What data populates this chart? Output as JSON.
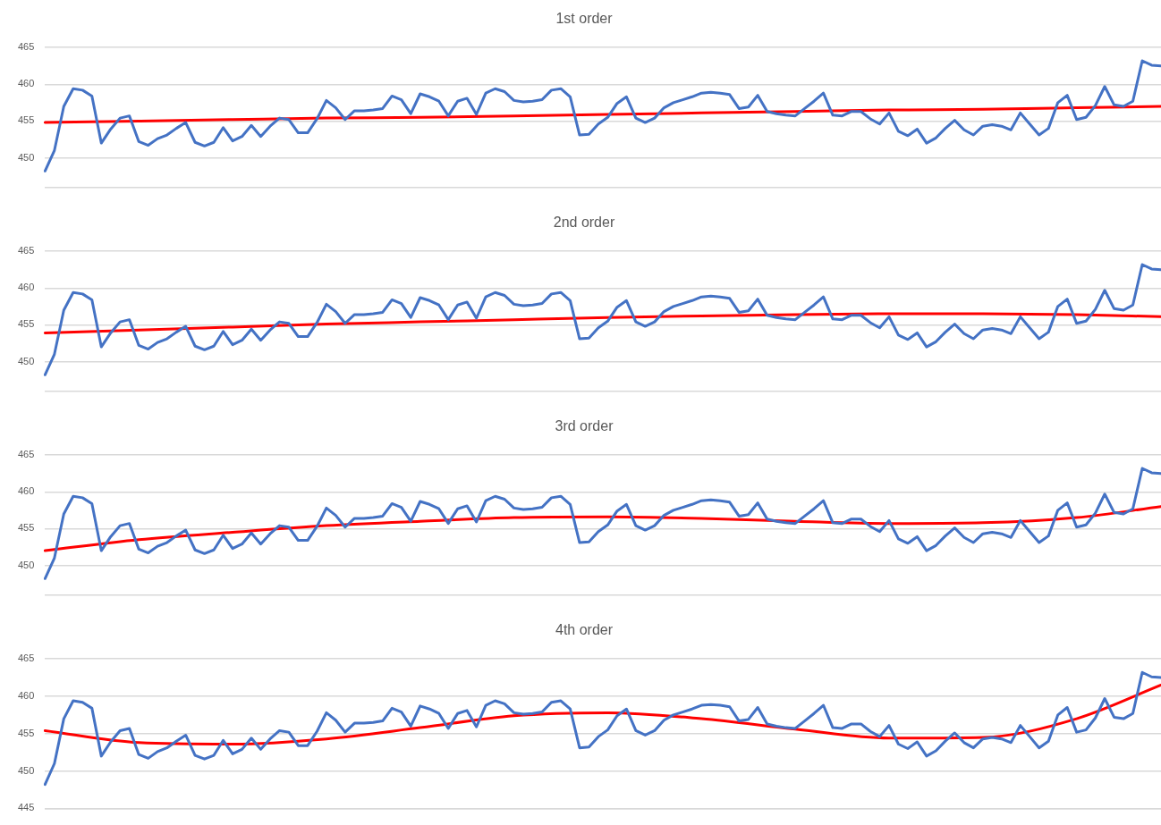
{
  "chart_data": [
    {
      "type": "line",
      "title": "1st order",
      "marker": "none",
      "grid": "y",
      "tick_labels": "y",
      "ylim": [
        446,
        465
      ],
      "yticks": [
        450,
        455,
        460,
        465
      ],
      "categories": [
        null,
        null,
        null,
        null,
        null,
        null,
        null,
        null,
        null,
        null,
        null,
        null,
        null,
        null,
        null,
        null,
        null,
        null,
        null,
        null,
        null,
        null,
        null,
        null,
        null,
        null,
        null,
        null,
        null,
        null,
        null,
        null,
        null,
        null,
        null,
        null,
        null,
        null,
        null,
        null,
        null,
        null,
        null,
        null,
        null,
        null,
        null,
        null,
        null,
        null,
        null,
        null,
        null,
        null,
        null,
        null,
        null,
        null,
        null,
        null,
        null,
        null,
        null,
        null,
        null,
        null,
        null,
        null,
        null,
        null,
        null,
        null,
        null,
        null,
        null,
        null,
        null,
        null,
        null,
        null,
        null,
        null,
        null,
        null,
        null,
        null,
        null,
        null,
        null,
        null,
        null,
        null,
        null,
        null,
        null,
        null,
        null,
        null,
        null,
        null,
        null,
        null,
        null,
        null,
        null,
        null,
        null,
        null,
        null,
        null,
        null,
        null,
        null,
        null,
        null,
        null,
        null,
        null,
        null,
        null
      ],
      "series": [
        {
          "color": "#4472c4",
          "values": [
            448.2,
            451,
            457,
            459.4,
            459.2,
            458.4,
            452,
            453.9,
            455.4,
            455.7,
            452.2,
            451.7,
            452.6,
            453.1,
            454,
            454.8,
            452.1,
            451.6,
            452.1,
            454.1,
            452.3,
            452.9,
            454.4,
            452.9,
            454.3,
            455.4,
            455.2,
            453.4,
            453.4,
            455.3,
            457.8,
            456.8,
            455.2,
            456.4,
            456.4,
            456.5,
            456.7,
            458.4,
            457.9,
            456.0,
            458.7,
            458.3,
            457.7,
            455.7,
            457.7,
            458.1,
            455.9,
            458.8,
            459.4,
            459.0,
            457.8,
            457.6,
            457.7,
            457.9,
            459.2,
            459.4,
            458.3,
            453.1,
            453.2,
            454.6,
            455.5,
            457.4,
            458.3,
            455.4,
            454.8,
            455.4,
            456.8,
            457.5,
            457.9,
            458.3,
            458.8,
            458.9,
            458.8,
            458.6,
            456.7,
            456.9,
            458.5,
            456.3,
            456.0,
            455.8,
            455.7,
            456.7,
            457.7,
            458.8,
            455.8,
            455.7,
            456.3,
            456.3,
            455.3,
            454.6,
            456.1,
            453.6,
            453.0,
            453.9,
            452.0,
            452.7,
            454.0,
            455.1,
            453.8,
            453.1,
            454.3,
            454.5,
            454.3,
            453.8,
            456.1,
            454.6,
            453.1,
            454.0,
            457.5,
            458.5,
            455.2,
            455.5,
            457.1,
            459.7,
            457.2,
            457.0,
            457.7,
            463.2,
            462.6,
            462.5
          ]
        },
        {
          "color": "#ff0000",
          "values": [
            454.8,
            null,
            null,
            null,
            null,
            null,
            null,
            null,
            null,
            null,
            455.0,
            null,
            null,
            null,
            null,
            null,
            null,
            null,
            null,
            null,
            455.2,
            null,
            null,
            null,
            null,
            null,
            null,
            null,
            null,
            null,
            455.4,
            null,
            null,
            null,
            null,
            null,
            null,
            null,
            null,
            null,
            455.5,
            null,
            null,
            null,
            null,
            null,
            null,
            null,
            null,
            null,
            455.7,
            null,
            null,
            null,
            null,
            null,
            null,
            null,
            null,
            null,
            455.9,
            null,
            null,
            null,
            null,
            null,
            null,
            null,
            null,
            null,
            456.1,
            null,
            null,
            null,
            null,
            null,
            null,
            null,
            null,
            null,
            456.3,
            null,
            null,
            null,
            null,
            null,
            null,
            null,
            null,
            null,
            456.5,
            null,
            null,
            null,
            null,
            null,
            null,
            null,
            null,
            null,
            456.6,
            null,
            null,
            null,
            null,
            null,
            null,
            null,
            null,
            null,
            456.8,
            null,
            null,
            null,
            null,
            null,
            null,
            null,
            null,
            457.0
          ]
        }
      ]
    },
    {
      "type": "line",
      "title": "2nd order",
      "marker": "none",
      "grid": "y",
      "tick_labels": "y",
      "ylim": [
        446,
        465
      ],
      "yticks": [
        450,
        455,
        460,
        465
      ],
      "categories": [
        null,
        null,
        null,
        null,
        null,
        null,
        null,
        null,
        null,
        null,
        null,
        null,
        null,
        null,
        null,
        null,
        null,
        null,
        null,
        null,
        null,
        null,
        null,
        null,
        null,
        null,
        null,
        null,
        null,
        null,
        null,
        null,
        null,
        null,
        null,
        null,
        null,
        null,
        null,
        null,
        null,
        null,
        null,
        null,
        null,
        null,
        null,
        null,
        null,
        null,
        null,
        null,
        null,
        null,
        null,
        null,
        null,
        null,
        null,
        null,
        null,
        null,
        null,
        null,
        null,
        null,
        null,
        null,
        null,
        null,
        null,
        null,
        null,
        null,
        null,
        null,
        null,
        null,
        null,
        null,
        null,
        null,
        null,
        null,
        null,
        null,
        null,
        null,
        null,
        null,
        null,
        null,
        null,
        null,
        null,
        null,
        null,
        null,
        null,
        null,
        null,
        null,
        null,
        null,
        null,
        null,
        null,
        null,
        null,
        null,
        null,
        null,
        null,
        null,
        null,
        null,
        null,
        null,
        null,
        null
      ],
      "series": [
        {
          "color": "#4472c4",
          "values": [
            448.2,
            451,
            457,
            459.4,
            459.2,
            458.4,
            452,
            453.9,
            455.4,
            455.7,
            452.2,
            451.7,
            452.6,
            453.1,
            454,
            454.8,
            452.1,
            451.6,
            452.1,
            454.1,
            452.3,
            452.9,
            454.4,
            452.9,
            454.3,
            455.4,
            455.2,
            453.4,
            453.4,
            455.3,
            457.8,
            456.8,
            455.2,
            456.4,
            456.4,
            456.5,
            456.7,
            458.4,
            457.9,
            456.0,
            458.7,
            458.3,
            457.7,
            455.7,
            457.7,
            458.1,
            455.9,
            458.8,
            459.4,
            459.0,
            457.8,
            457.6,
            457.7,
            457.9,
            459.2,
            459.4,
            458.3,
            453.1,
            453.2,
            454.6,
            455.5,
            457.4,
            458.3,
            455.4,
            454.8,
            455.4,
            456.8,
            457.5,
            457.9,
            458.3,
            458.8,
            458.9,
            458.8,
            458.6,
            456.7,
            456.9,
            458.5,
            456.3,
            456.0,
            455.8,
            455.7,
            456.7,
            457.7,
            458.8,
            455.8,
            455.7,
            456.3,
            456.3,
            455.3,
            454.6,
            456.1,
            453.6,
            453.0,
            453.9,
            452.0,
            452.7,
            454.0,
            455.1,
            453.8,
            453.1,
            454.3,
            454.5,
            454.3,
            453.8,
            456.1,
            454.6,
            453.1,
            454.0,
            457.5,
            458.5,
            455.2,
            455.5,
            457.1,
            459.7,
            457.2,
            457.0,
            457.7,
            463.2,
            462.6,
            462.5
          ]
        },
        {
          "color": "#ff0000",
          "values": [
            453.9,
            null,
            null,
            null,
            null,
            null,
            null,
            null,
            null,
            null,
            454.3,
            null,
            null,
            null,
            null,
            null,
            null,
            null,
            null,
            null,
            454.7,
            null,
            null,
            null,
            null,
            null,
            null,
            null,
            null,
            null,
            455.1,
            null,
            null,
            null,
            null,
            null,
            null,
            null,
            null,
            null,
            455.4,
            null,
            null,
            null,
            null,
            null,
            null,
            null,
            null,
            null,
            455.7,
            null,
            null,
            null,
            null,
            null,
            null,
            null,
            null,
            null,
            456.0,
            null,
            null,
            null,
            null,
            null,
            null,
            null,
            null,
            null,
            456.2,
            null,
            null,
            null,
            null,
            null,
            null,
            null,
            null,
            null,
            456.4,
            null,
            null,
            null,
            null,
            null,
            null,
            null,
            null,
            null,
            456.5,
            null,
            null,
            null,
            null,
            null,
            null,
            null,
            null,
            null,
            456.5,
            null,
            null,
            null,
            null,
            null,
            null,
            null,
            null,
            null,
            456.4,
            null,
            null,
            null,
            null,
            null,
            null,
            null,
            null,
            456.1
          ]
        }
      ]
    },
    {
      "type": "line",
      "title": "3rd order",
      "marker": "none",
      "grid": "y",
      "tick_labels": "y",
      "ylim": [
        446,
        465
      ],
      "yticks": [
        450,
        455,
        460,
        465
      ],
      "categories": [
        null,
        null,
        null,
        null,
        null,
        null,
        null,
        null,
        null,
        null,
        null,
        null,
        null,
        null,
        null,
        null,
        null,
        null,
        null,
        null,
        null,
        null,
        null,
        null,
        null,
        null,
        null,
        null,
        null,
        null,
        null,
        null,
        null,
        null,
        null,
        null,
        null,
        null,
        null,
        null,
        null,
        null,
        null,
        null,
        null,
        null,
        null,
        null,
        null,
        null,
        null,
        null,
        null,
        null,
        null,
        null,
        null,
        null,
        null,
        null,
        null,
        null,
        null,
        null,
        null,
        null,
        null,
        null,
        null,
        null,
        null,
        null,
        null,
        null,
        null,
        null,
        null,
        null,
        null,
        null,
        null,
        null,
        null,
        null,
        null,
        null,
        null,
        null,
        null,
        null,
        null,
        null,
        null,
        null,
        null,
        null,
        null,
        null,
        null,
        null,
        null,
        null,
        null,
        null,
        null,
        null,
        null,
        null,
        null,
        null,
        null,
        null,
        null,
        null,
        null,
        null,
        null,
        null,
        null,
        null
      ],
      "series": [
        {
          "color": "#4472c4",
          "values": [
            448.2,
            451,
            457,
            459.4,
            459.2,
            458.4,
            452,
            453.9,
            455.4,
            455.7,
            452.2,
            451.7,
            452.6,
            453.1,
            454,
            454.8,
            452.1,
            451.6,
            452.1,
            454.1,
            452.3,
            452.9,
            454.4,
            452.9,
            454.3,
            455.4,
            455.2,
            453.4,
            453.4,
            455.3,
            457.8,
            456.8,
            455.2,
            456.4,
            456.4,
            456.5,
            456.7,
            458.4,
            457.9,
            456.0,
            458.7,
            458.3,
            457.7,
            455.7,
            457.7,
            458.1,
            455.9,
            458.8,
            459.4,
            459.0,
            457.8,
            457.6,
            457.7,
            457.9,
            459.2,
            459.4,
            458.3,
            453.1,
            453.2,
            454.6,
            455.5,
            457.4,
            458.3,
            455.4,
            454.8,
            455.4,
            456.8,
            457.5,
            457.9,
            458.3,
            458.8,
            458.9,
            458.8,
            458.6,
            456.7,
            456.9,
            458.5,
            456.3,
            456.0,
            455.8,
            455.7,
            456.7,
            457.7,
            458.8,
            455.8,
            455.7,
            456.3,
            456.3,
            455.3,
            454.6,
            456.1,
            453.6,
            453.0,
            453.9,
            452.0,
            452.7,
            454.0,
            455.1,
            453.8,
            453.1,
            454.3,
            454.5,
            454.3,
            453.8,
            456.1,
            454.6,
            453.1,
            454.0,
            457.5,
            458.5,
            455.2,
            455.5,
            457.1,
            459.7,
            457.2,
            457.0,
            457.7,
            463.2,
            462.6,
            462.5
          ]
        },
        {
          "color": "#ff0000",
          "values": [
            452.0,
            null,
            null,
            null,
            null,
            null,
            null,
            null,
            null,
            null,
            453.5,
            null,
            null,
            null,
            null,
            null,
            null,
            null,
            null,
            null,
            454.5,
            null,
            null,
            null,
            null,
            null,
            null,
            null,
            null,
            null,
            455.4,
            null,
            null,
            null,
            null,
            null,
            null,
            null,
            null,
            null,
            456.0,
            null,
            null,
            null,
            null,
            null,
            null,
            null,
            null,
            null,
            456.5,
            null,
            null,
            null,
            null,
            null,
            null,
            null,
            null,
            null,
            456.6,
            null,
            null,
            null,
            null,
            null,
            null,
            null,
            null,
            null,
            456.4,
            null,
            null,
            null,
            null,
            null,
            null,
            null,
            null,
            null,
            456.0,
            null,
            null,
            null,
            null,
            null,
            null,
            null,
            null,
            null,
            455.7,
            null,
            null,
            null,
            null,
            null,
            null,
            null,
            null,
            null,
            455.8,
            null,
            null,
            null,
            null,
            null,
            null,
            null,
            null,
            null,
            456.5,
            null,
            null,
            null,
            null,
            null,
            null,
            null,
            null,
            458.0
          ]
        }
      ]
    },
    {
      "type": "line",
      "title": "4th order",
      "marker": "none",
      "grid": "y",
      "tick_labels": "y",
      "ylim": [
        445,
        465
      ],
      "yticks": [
        445,
        450,
        455,
        460,
        465
      ],
      "categories": [
        null,
        null,
        null,
        null,
        null,
        null,
        null,
        null,
        null,
        null,
        null,
        null,
        null,
        null,
        null,
        null,
        null,
        null,
        null,
        null,
        null,
        null,
        null,
        null,
        null,
        null,
        null,
        null,
        null,
        null,
        null,
        null,
        null,
        null,
        null,
        null,
        null,
        null,
        null,
        null,
        null,
        null,
        null,
        null,
        null,
        null,
        null,
        null,
        null,
        null,
        null,
        null,
        null,
        null,
        null,
        null,
        null,
        null,
        null,
        null,
        null,
        null,
        null,
        null,
        null,
        null,
        null,
        null,
        null,
        null,
        null,
        null,
        null,
        null,
        null,
        null,
        null,
        null,
        null,
        null,
        null,
        null,
        null,
        null,
        null,
        null,
        null,
        null,
        null,
        null,
        null,
        null,
        null,
        null,
        null,
        null,
        null,
        null,
        null,
        null,
        null,
        null,
        null,
        null,
        null,
        null,
        null,
        null,
        null,
        null,
        null,
        null,
        null,
        null,
        null,
        null,
        null,
        null,
        null,
        null
      ],
      "series": [
        {
          "color": "#4472c4",
          "values": [
            448.2,
            451,
            457,
            459.4,
            459.2,
            458.4,
            452,
            453.9,
            455.4,
            455.7,
            452.2,
            451.7,
            452.6,
            453.1,
            454,
            454.8,
            452.1,
            451.6,
            452.1,
            454.1,
            452.3,
            452.9,
            454.4,
            452.9,
            454.3,
            455.4,
            455.2,
            453.4,
            453.4,
            455.3,
            457.8,
            456.8,
            455.2,
            456.4,
            456.4,
            456.5,
            456.7,
            458.4,
            457.9,
            456.0,
            458.7,
            458.3,
            457.7,
            455.7,
            457.7,
            458.1,
            455.9,
            458.8,
            459.4,
            459.0,
            457.8,
            457.6,
            457.7,
            457.9,
            459.2,
            459.4,
            458.3,
            453.1,
            453.2,
            454.6,
            455.5,
            457.4,
            458.3,
            455.4,
            454.8,
            455.4,
            456.8,
            457.5,
            457.9,
            458.3,
            458.8,
            458.9,
            458.8,
            458.6,
            456.7,
            456.9,
            458.5,
            456.3,
            456.0,
            455.8,
            455.7,
            456.7,
            457.7,
            458.8,
            455.8,
            455.7,
            456.3,
            456.3,
            455.3,
            454.6,
            456.1,
            453.6,
            453.0,
            453.9,
            452.0,
            452.7,
            454.0,
            455.1,
            453.8,
            453.1,
            454.3,
            454.5,
            454.3,
            453.8,
            456.1,
            454.6,
            453.1,
            454.0,
            457.5,
            458.5,
            455.2,
            455.5,
            457.1,
            459.7,
            457.2,
            457.0,
            457.7,
            463.2,
            462.6,
            462.5
          ]
        },
        {
          "color": "#ff0000",
          "values": [
            455.4,
            null,
            null,
            null,
            null,
            null,
            null,
            null,
            null,
            null,
            453.8,
            null,
            null,
            null,
            null,
            null,
            null,
            null,
            null,
            null,
            453.6,
            null,
            null,
            null,
            null,
            null,
            null,
            null,
            null,
            null,
            454.3,
            null,
            null,
            null,
            null,
            null,
            null,
            null,
            null,
            null,
            455.8,
            null,
            null,
            null,
            null,
            null,
            null,
            null,
            null,
            null,
            457.4,
            null,
            null,
            null,
            null,
            null,
            null,
            null,
            null,
            null,
            457.8,
            null,
            null,
            null,
            null,
            null,
            null,
            null,
            null,
            null,
            457.0,
            null,
            null,
            null,
            null,
            null,
            null,
            null,
            null,
            null,
            455.6,
            null,
            null,
            null,
            null,
            null,
            null,
            null,
            null,
            null,
            454.4,
            null,
            null,
            null,
            null,
            null,
            null,
            null,
            null,
            null,
            454.5,
            null,
            null,
            null,
            null,
            null,
            null,
            null,
            null,
            null,
            457.0,
            null,
            null,
            null,
            null,
            null,
            null,
            null,
            null,
            461.5
          ]
        }
      ]
    }
  ]
}
